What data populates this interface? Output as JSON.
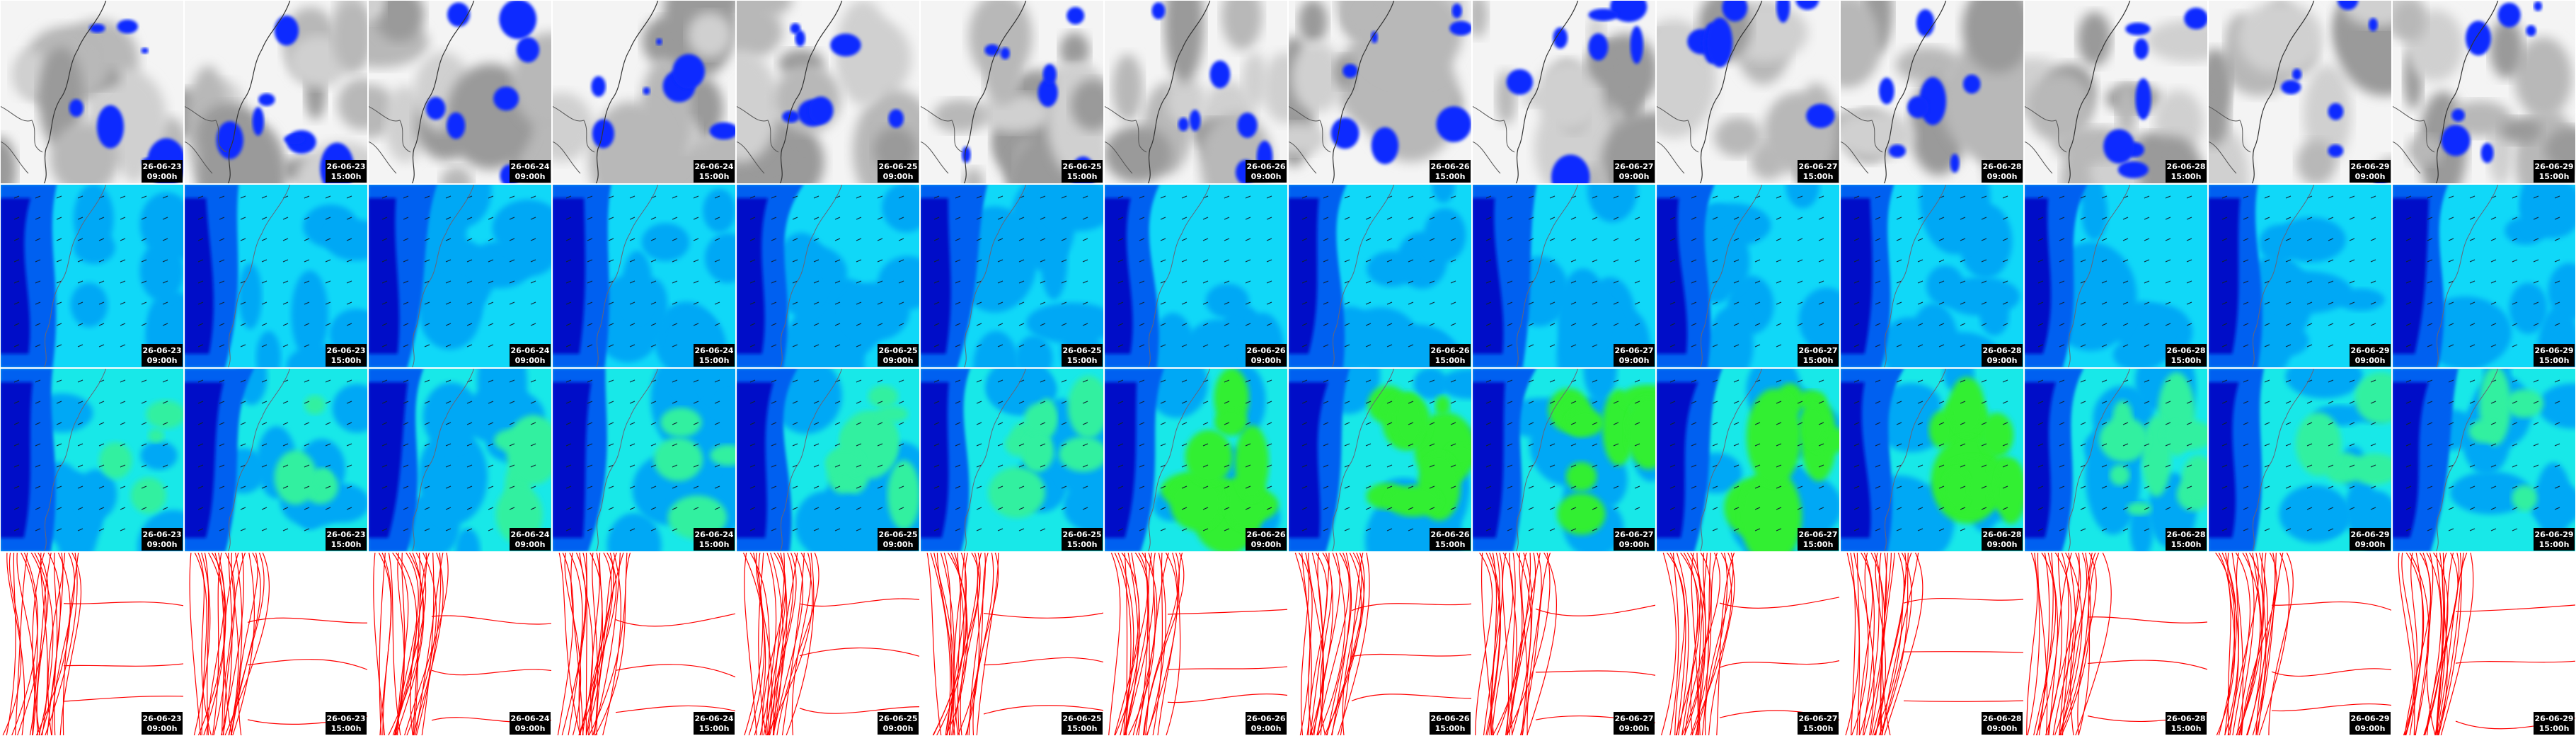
{
  "panels": [
    {
      "date": "26-06-23",
      "time": "09:00h"
    },
    {
      "date": "26-06-23",
      "time": "15:00h"
    },
    {
      "date": "26-06-24",
      "time": "09:00h"
    },
    {
      "date": "26-06-24",
      "time": "15:00h"
    },
    {
      "date": "26-06-25",
      "time": "09:00h"
    },
    {
      "date": "26-06-25",
      "time": "15:00h"
    },
    {
      "date": "26-06-26",
      "time": "09:00h"
    },
    {
      "date": "26-06-26",
      "time": "15:00h"
    },
    {
      "date": "26-06-27",
      "time": "09:00h"
    },
    {
      "date": "26-06-27",
      "time": "15:00h"
    },
    {
      "date": "26-06-28",
      "time": "09:00h"
    },
    {
      "date": "26-06-28",
      "time": "15:00h"
    },
    {
      "date": "26-06-29",
      "time": "09:00h"
    },
    {
      "date": "26-06-29",
      "time": "15:00h"
    }
  ]
}
